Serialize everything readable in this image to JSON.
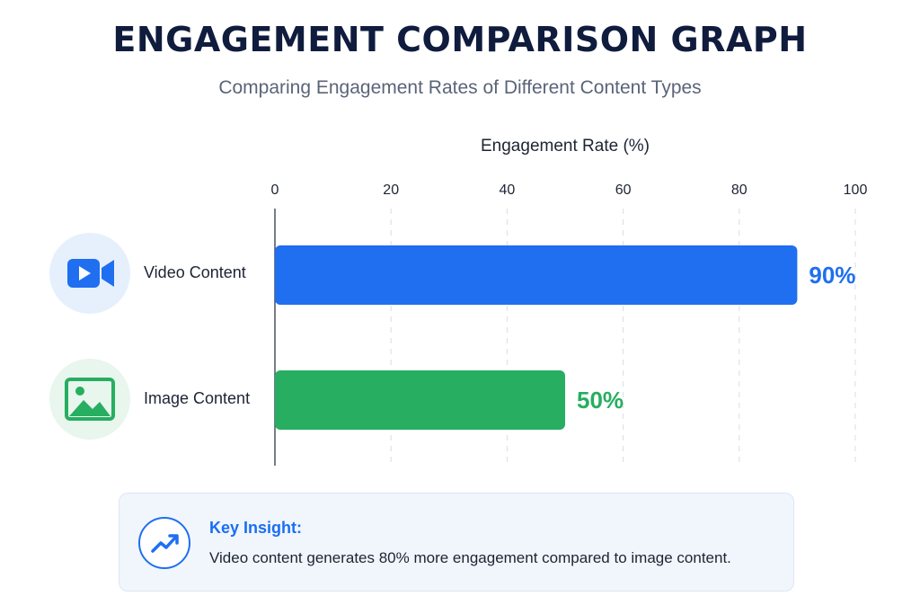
{
  "header": {
    "title": "ENGAGEMENT COMPARISON GRAPH",
    "subtitle": "Comparing Engagement Rates of Different Content Types"
  },
  "chart_data": {
    "type": "bar",
    "orientation": "horizontal",
    "xlabel": "Engagement Rate (%)",
    "xlim": [
      0,
      100
    ],
    "ticks": [
      0,
      20,
      40,
      60,
      80,
      100
    ],
    "grid": true,
    "categories": [
      "Video Content",
      "Image Content"
    ],
    "values": [
      90,
      50
    ],
    "value_labels": [
      "90%",
      "50%"
    ],
    "icons": [
      "video-camera-icon",
      "image-icon"
    ],
    "colors": [
      "#1f6ff0",
      "#27ae60"
    ]
  },
  "insight": {
    "icon": "trending-up-icon",
    "title": "Key Insight:",
    "text": "Video content generates 80% more engagement compared to image content."
  },
  "colors": {
    "title": "#101c3d",
    "accent_blue": "#1f6ff0",
    "accent_green": "#27ae60",
    "insight_bg": "#f1f6fd"
  }
}
